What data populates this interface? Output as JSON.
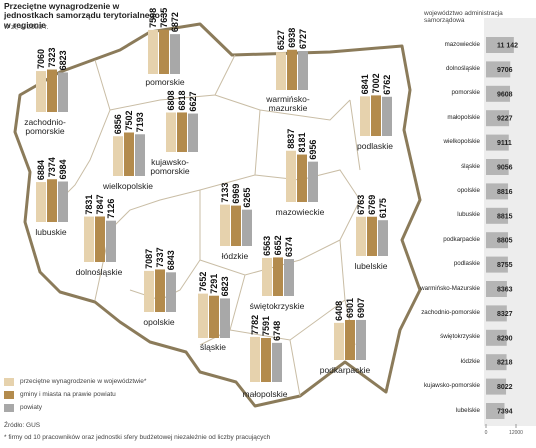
{
  "chart_data": [
    {
      "type": "map-bar",
      "title": "Przeciętne wynagrodzenie w jednostkach samorządu terytorialnego i w regionie",
      "subtitle": "w zł, w 2023 r.",
      "categories": [
        "pomorskie",
        "warmińsko-mazurskie",
        "zachodnio-pomorskie",
        "podlaskie",
        "kujawsko-pomorskie",
        "wielkopolskie",
        "lubuskie",
        "mazowieckie",
        "łódzkie",
        "dolnośląskie",
        "lubelskie",
        "opolskie",
        "świętokrzyskie",
        "śląskie",
        "podkarpackie",
        "małopolskie"
      ],
      "series": [
        {
          "name": "przeciętne wynagrodzenie w województwie*",
          "color": "#e6d2ad",
          "values": [
            7598,
            6527,
            7060,
            6841,
            6808,
            6856,
            6884,
            8837,
            7133,
            7831,
            6763,
            7087,
            6563,
            7652,
            6408,
            7782
          ]
        },
        {
          "name": "gminy i miasta na prawie powiatu",
          "color": "#b38b4d",
          "values": [
            7635,
            6938,
            7323,
            7002,
            6818,
            7502,
            7374,
            8181,
            6969,
            7847,
            6769,
            7337,
            6652,
            7291,
            6901,
            7591
          ]
        },
        {
          "name": "powiaty",
          "color": "#a8a8a8",
          "values": [
            6872,
            6727,
            6823,
            6762,
            6627,
            7193,
            6984,
            6956,
            6265,
            7126,
            6175,
            6843,
            6374,
            6823,
            6907,
            6748
          ]
        }
      ],
      "source": "Źródło: GUS",
      "note": "* firmy od 10 pracowników oraz jednostki sfery budżetowej niezależnie od liczby pracujących"
    },
    {
      "type": "barh",
      "title": "województwo administracja samorządowa",
      "categories": [
        "mazowieckie",
        "dolnośląskie",
        "pomorskie",
        "małopolskie",
        "wielkopolskie",
        "śląskie",
        "opolskie",
        "lubuskie",
        "podkarpackie",
        "podlaskie",
        "warmińsko-Mazurskie",
        "zachodnio-pomorskie",
        "świętokrzyskie",
        "łódzkie",
        "kujawsko-pomorskie",
        "lubelskie"
      ],
      "values": [
        11142,
        9706,
        9608,
        9227,
        9111,
        9056,
        8816,
        8815,
        8805,
        8755,
        8363,
        8327,
        8290,
        8218,
        8022,
        7394
      ],
      "value_labels": [
        "11 142",
        "9706",
        "9608",
        "9227",
        "9111",
        "9056",
        "8816",
        "8815",
        "8805",
        "8755",
        "8363",
        "8327",
        "8290",
        "8218",
        "8022",
        "7394"
      ],
      "color": "#b5b5b5",
      "xlim": [
        0,
        12000
      ],
      "xticks": [
        0,
        12000
      ]
    }
  ]
}
